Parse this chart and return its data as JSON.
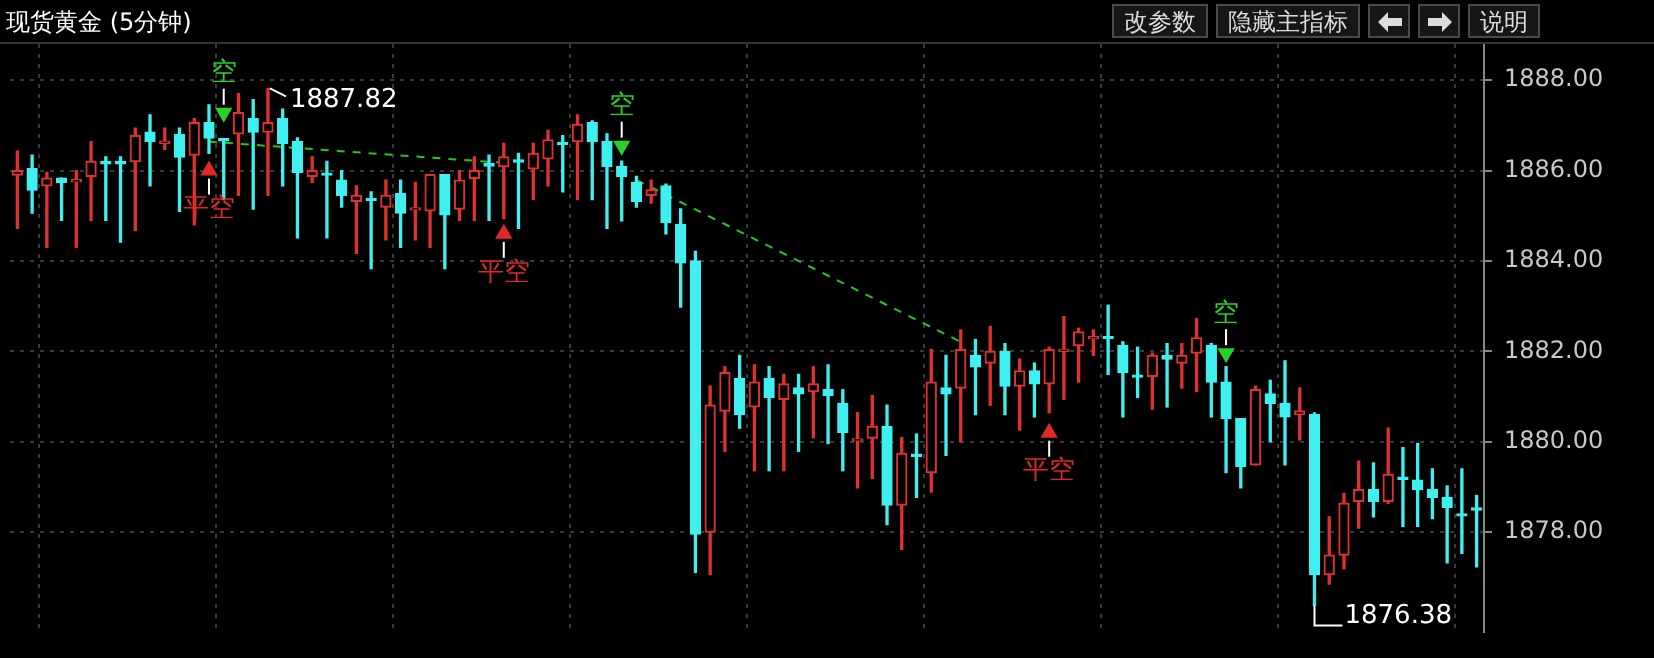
{
  "chart_data": {
    "type": "candlestick",
    "title": "现货黄金 (5分钟)",
    "annotations": [
      "改参数",
      "隐藏主指标",
      "说明",
      "1887.82",
      "1876.38"
    ],
    "categories": [
      null,
      null,
      null,
      null,
      null,
      null,
      null,
      null,
      null,
      null,
      null,
      null,
      null,
      null,
      null,
      null,
      null,
      null,
      null,
      null,
      null,
      null,
      null,
      null,
      null,
      null,
      null,
      null,
      null,
      null,
      null,
      null,
      null,
      null,
      null,
      null,
      null,
      null,
      null,
      null,
      null,
      null,
      null,
      null,
      null,
      null,
      null,
      null,
      null,
      null,
      null,
      null,
      null,
      null,
      null,
      null,
      null,
      null,
      null,
      null,
      null,
      null,
      null,
      null,
      null,
      null,
      null,
      null,
      null,
      null,
      null,
      null,
      null,
      null,
      null,
      null,
      null,
      null,
      null,
      null,
      null,
      null,
      null,
      null,
      null,
      null,
      null,
      null,
      null,
      null,
      null,
      null,
      null,
      null,
      null,
      null,
      null,
      null,
      null,
      null
    ],
    "ohlc": [
      [
        1885.9,
        1886.43,
        1884.72,
        1886.0
      ],
      [
        1886.04,
        1886.34,
        1885.06,
        1885.57
      ],
      [
        1885.66,
        1885.96,
        1884.3,
        1885.83
      ],
      [
        1885.83,
        1885.83,
        1884.9,
        1885.74
      ],
      [
        1885.75,
        1886.0,
        1884.3,
        1885.8
      ],
      [
        1885.87,
        1886.64,
        1884.9,
        1886.2
      ],
      [
        1886.2,
        1886.3,
        1884.9,
        1886.15
      ],
      [
        1886.2,
        1886.3,
        1884.42,
        1886.15
      ],
      [
        1886.2,
        1886.94,
        1884.68,
        1886.77
      ],
      [
        1886.85,
        1887.23,
        1885.66,
        1886.64
      ],
      [
        1886.6,
        1886.94,
        1886.47,
        1886.65
      ],
      [
        1886.8,
        1886.94,
        1885.1,
        1886.3
      ],
      [
        1886.34,
        1887.15,
        1884.8,
        1887.06
      ],
      [
        1887.06,
        1887.45,
        1886.38,
        1886.72
      ],
      [
        1886.7,
        1886.7,
        1885.36,
        1886.66
      ],
      [
        1886.81,
        1887.7,
        1885.45,
        1887.28
      ],
      [
        1887.15,
        1887.57,
        1885.15,
        1886.85
      ],
      [
        1886.85,
        1887.82,
        1885.45,
        1887.06
      ],
      [
        1887.15,
        1887.36,
        1885.66,
        1886.6
      ],
      [
        1886.64,
        1886.72,
        1884.51,
        1885.96
      ],
      [
        1885.87,
        1886.3,
        1885.74,
        1886.0
      ],
      [
        1885.94,
        1886.2,
        1884.51,
        1885.9
      ],
      [
        1885.79,
        1886.0,
        1885.19,
        1885.45
      ],
      [
        1885.32,
        1885.66,
        1884.17,
        1885.45
      ],
      [
        1885.38,
        1885.53,
        1883.83,
        1885.34
      ],
      [
        1885.19,
        1885.79,
        1884.47,
        1885.45
      ],
      [
        1885.49,
        1885.79,
        1884.3,
        1885.06
      ],
      [
        1885.13,
        1885.74,
        1884.47,
        1885.17
      ],
      [
        1885.11,
        1885.91,
        1884.3,
        1885.91
      ],
      [
        1885.91,
        1885.91,
        1883.83,
        1885.02
      ],
      [
        1885.15,
        1886.0,
        1884.9,
        1885.79
      ],
      [
        1885.83,
        1886.3,
        1884.9,
        1886.0
      ],
      [
        1886.15,
        1886.34,
        1884.9,
        1886.1
      ],
      [
        1886.09,
        1886.6,
        1884.94,
        1886.3
      ],
      [
        1886.23,
        1886.38,
        1884.72,
        1886.19
      ],
      [
        1886.04,
        1886.6,
        1885.36,
        1886.38
      ],
      [
        1886.26,
        1886.89,
        1885.66,
        1886.68
      ],
      [
        1886.62,
        1886.77,
        1885.53,
        1886.58
      ],
      [
        1886.64,
        1887.23,
        1885.36,
        1887.02
      ],
      [
        1887.06,
        1887.1,
        1885.36,
        1886.64
      ],
      [
        1886.64,
        1886.81,
        1884.72,
        1886.09
      ],
      [
        1886.09,
        1886.21,
        1884.89,
        1885.87
      ],
      [
        1885.74,
        1885.87,
        1885.19,
        1885.32
      ],
      [
        1885.45,
        1885.79,
        1885.28,
        1885.57
      ],
      [
        1885.66,
        1885.7,
        1884.6,
        1884.85
      ],
      [
        1884.81,
        1885.15,
        1882.98,
        1883.96
      ],
      [
        1884.0,
        1884.21,
        1877.11,
        1877.96
      ],
      [
        1878.0,
        1881.23,
        1877.06,
        1880.81
      ],
      [
        1880.68,
        1881.66,
        1879.79,
        1881.53
      ],
      [
        1881.4,
        1881.91,
        1880.3,
        1880.6
      ],
      [
        1880.77,
        1881.7,
        1879.36,
        1881.32
      ],
      [
        1881.4,
        1881.66,
        1879.36,
        1880.98
      ],
      [
        1880.94,
        1881.49,
        1879.36,
        1881.28
      ],
      [
        1881.19,
        1881.49,
        1879.79,
        1881.06
      ],
      [
        1881.11,
        1881.66,
        1880.09,
        1881.28
      ],
      [
        1881.15,
        1881.7,
        1879.96,
        1881.02
      ],
      [
        1880.85,
        1881.15,
        1879.36,
        1880.21
      ],
      [
        1880.02,
        1880.64,
        1878.98,
        1880.06
      ],
      [
        1880.08,
        1881.02,
        1879.19,
        1880.34
      ],
      [
        1880.34,
        1880.81,
        1878.17,
        1878.6
      ],
      [
        1878.6,
        1880.09,
        1877.62,
        1879.74
      ],
      [
        1879.72,
        1880.17,
        1878.77,
        1879.68
      ],
      [
        1879.32,
        1882.04,
        1878.89,
        1881.32
      ],
      [
        1881.19,
        1881.91,
        1879.7,
        1881.06
      ],
      [
        1881.19,
        1882.47,
        1880.0,
        1882.04
      ],
      [
        1881.91,
        1882.26,
        1880.6,
        1881.66
      ],
      [
        1881.74,
        1882.55,
        1880.81,
        1882.0
      ],
      [
        1882.0,
        1882.17,
        1880.6,
        1881.23
      ],
      [
        1881.23,
        1881.83,
        1880.26,
        1881.57
      ],
      [
        1881.57,
        1881.74,
        1880.55,
        1881.28
      ],
      [
        1881.28,
        1882.09,
        1880.64,
        1882.04
      ],
      [
        1882.0,
        1882.77,
        1880.94,
        1882.04
      ],
      [
        1882.13,
        1882.51,
        1881.32,
        1882.43
      ],
      [
        1882.28,
        1882.47,
        1881.91,
        1882.32
      ],
      [
        1882.32,
        1883.02,
        1881.49,
        1882.28
      ],
      [
        1882.13,
        1882.21,
        1880.55,
        1881.53
      ],
      [
        1881.47,
        1882.09,
        1880.98,
        1881.43
      ],
      [
        1881.45,
        1881.96,
        1880.72,
        1881.91
      ],
      [
        1881.91,
        1882.17,
        1880.77,
        1881.83
      ],
      [
        1881.74,
        1882.17,
        1881.19,
        1881.91
      ],
      [
        1881.96,
        1882.72,
        1881.11,
        1882.3
      ],
      [
        1882.13,
        1882.17,
        1880.55,
        1881.32
      ],
      [
        1881.32,
        1881.66,
        1879.32,
        1880.51
      ],
      [
        1880.51,
        1880.51,
        1878.98,
        1879.45
      ],
      [
        1879.49,
        1881.23,
        1879.49,
        1881.15
      ],
      [
        1881.06,
        1881.36,
        1880.0,
        1880.85
      ],
      [
        1880.85,
        1881.79,
        1879.49,
        1880.55
      ],
      [
        1880.6,
        1881.19,
        1880.04,
        1880.68
      ],
      [
        1880.6,
        1880.64,
        1876.38,
        1877.06
      ],
      [
        1877.06,
        1878.34,
        1876.85,
        1877.49
      ],
      [
        1877.49,
        1878.85,
        1877.19,
        1878.64
      ],
      [
        1878.68,
        1879.57,
        1878.09,
        1878.94
      ],
      [
        1878.94,
        1879.53,
        1878.34,
        1878.68
      ],
      [
        1878.68,
        1880.3,
        1878.64,
        1879.28
      ],
      [
        1879.21,
        1879.87,
        1878.13,
        1879.17
      ],
      [
        1879.15,
        1879.96,
        1878.13,
        1878.94
      ],
      [
        1878.94,
        1879.4,
        1878.3,
        1878.77
      ],
      [
        1878.77,
        1879.02,
        1877.32,
        1878.55
      ],
      [
        1878.4,
        1879.4,
        1877.53,
        1878.36
      ],
      [
        1878.53,
        1878.81,
        1877.23,
        1878.49
      ]
    ],
    "colors": [
      "#e03030",
      "#40f0f0",
      "#e03030",
      "#40f0f0",
      "#e03030",
      "#e03030",
      "#40f0f0",
      "#40f0f0",
      "#e03030",
      "#40f0f0",
      "#e03030",
      "#40f0f0",
      "#e03030",
      "#40f0f0",
      "#40f0f0",
      "#e03030",
      "#40f0f0",
      "#e03030",
      "#40f0f0",
      "#40f0f0",
      "#e03030",
      "#40f0f0",
      "#40f0f0",
      "#e03030",
      "#40f0f0",
      "#e03030",
      "#40f0f0",
      "#e03030",
      "#e03030",
      "#40f0f0",
      "#e03030",
      "#e03030",
      "#40f0f0",
      "#e03030",
      "#40f0f0",
      "#e03030",
      "#e03030",
      "#40f0f0",
      "#e03030",
      "#40f0f0",
      "#40f0f0",
      "#40f0f0",
      "#40f0f0",
      "#e03030",
      "#40f0f0",
      "#40f0f0",
      "#40f0f0",
      "#e03030",
      "#e03030",
      "#40f0f0",
      "#e03030",
      "#40f0f0",
      "#e03030",
      "#40f0f0",
      "#e03030",
      "#40f0f0",
      "#40f0f0",
      "#e03030",
      "#e03030",
      "#40f0f0",
      "#e03030",
      "#40f0f0",
      "#e03030",
      "#40f0f0",
      "#e03030",
      "#40f0f0",
      "#e03030",
      "#40f0f0",
      "#e03030",
      "#40f0f0",
      "#e03030",
      "#e03030",
      "#e03030",
      "#e03030",
      "#40f0f0",
      "#40f0f0",
      "#40f0f0",
      "#e03030",
      "#40f0f0",
      "#e03030",
      "#e03030",
      "#40f0f0",
      "#40f0f0",
      "#40f0f0",
      "#e03030",
      "#40f0f0",
      "#40f0f0",
      "#e03030",
      "#40f0f0",
      "#e03030",
      "#e03030",
      "#e03030",
      "#40f0f0",
      "#e03030",
      "#40f0f0",
      "#40f0f0",
      "#40f0f0",
      "#40f0f0",
      "#40f0f0",
      "#40f0f0"
    ],
    "series": [
      {
        "type": "scatter",
        "name": "空",
        "color": "#2ad02a",
        "values": [
          null,
          null,
          null,
          null,
          null,
          null,
          null,
          null,
          null,
          null,
          null,
          null,
          null,
          null,
          1887.28,
          null,
          null,
          null,
          null,
          null,
          null,
          null,
          null,
          null,
          null,
          null,
          null,
          null,
          null,
          null,
          null,
          null,
          null,
          null,
          null,
          null,
          null,
          null,
          null,
          null,
          null,
          1886.55,
          null,
          null,
          null,
          null,
          null,
          null,
          null,
          null,
          null,
          null,
          null,
          null,
          null,
          null,
          null,
          null,
          null,
          null,
          null,
          null,
          null,
          null,
          null,
          null,
          null,
          null,
          null,
          null,
          null,
          null,
          null,
          null,
          null,
          null,
          null,
          null,
          null,
          null,
          null,
          null,
          1881.96,
          null,
          null,
          null,
          null,
          null,
          null,
          null,
          null,
          null,
          null,
          null,
          null,
          null,
          null,
          null,
          null,
          null
        ]
      },
      {
        "type": "scatter",
        "name": "平空",
        "color": "#e02828",
        "values": [
          null,
          null,
          null,
          null,
          null,
          null,
          null,
          null,
          null,
          null,
          null,
          null,
          null,
          1886.0,
          null,
          null,
          null,
          null,
          null,
          null,
          null,
          null,
          null,
          null,
          null,
          null,
          null,
          null,
          null,
          null,
          null,
          null,
          null,
          1884.6,
          null,
          null,
          null,
          null,
          null,
          null,
          null,
          null,
          null,
          null,
          null,
          null,
          null,
          null,
          null,
          null,
          null,
          null,
          null,
          null,
          null,
          null,
          null,
          null,
          null,
          null,
          null,
          null,
          null,
          null,
          null,
          null,
          null,
          null,
          null,
          null,
          1880.2,
          null,
          null,
          null,
          null,
          null,
          null,
          null,
          null,
          null,
          null,
          null,
          null,
          null,
          null,
          null,
          null,
          null,
          null,
          null,
          null,
          null,
          null,
          null,
          null,
          null,
          null,
          null,
          null,
          null
        ]
      },
      {
        "type": "line",
        "color": "#22c822",
        "line_style": "dashed",
        "values": [
          null,
          null,
          null,
          null,
          null,
          null,
          null,
          null,
          null,
          null,
          null,
          null,
          null,
          1886.64,
          null,
          null,
          null,
          null,
          null,
          null,
          null,
          null,
          null,
          null,
          null,
          null,
          null,
          null,
          null,
          null,
          null,
          null,
          null,
          1886.17,
          null,
          null,
          null,
          null,
          null,
          null,
          null,
          null,
          null,
          null,
          null,
          null,
          null,
          null,
          null,
          null,
          null,
          null,
          null,
          null,
          null,
          null,
          null,
          null,
          null,
          null,
          null,
          null,
          null,
          null,
          null,
          null,
          null,
          null,
          null,
          null,
          null,
          null,
          null,
          null,
          null,
          null,
          null,
          null,
          null,
          null,
          null,
          null,
          null,
          null,
          null,
          null,
          null,
          null,
          null,
          null,
          null,
          null,
          null,
          null,
          null,
          null,
          null,
          null,
          null,
          null
        ]
      },
      {
        "type": "line",
        "color": "#22c822",
        "line_style": "dashed",
        "values": [
          null,
          null,
          null,
          null,
          null,
          null,
          null,
          null,
          null,
          null,
          null,
          null,
          null,
          null,
          null,
          null,
          null,
          null,
          null,
          null,
          null,
          null,
          null,
          null,
          null,
          null,
          null,
          null,
          null,
          null,
          null,
          null,
          null,
          null,
          null,
          null,
          null,
          null,
          null,
          null,
          null,
          null,
          1885.79,
          null,
          null,
          null,
          null,
          null,
          null,
          null,
          null,
          null,
          null,
          null,
          null,
          null,
          null,
          null,
          null,
          null,
          null,
          null,
          null,
          null,
          1882.21,
          null,
          null,
          null,
          null,
          null,
          null,
          null,
          null,
          null,
          null,
          null,
          null,
          null,
          null,
          null,
          null,
          null,
          null,
          null,
          null,
          null,
          null,
          null,
          null,
          null,
          null,
          null,
          null,
          null,
          null,
          null,
          null,
          null,
          null,
          null
        ]
      }
    ],
    "ylim": [
      1875.8,
      1888.8
    ],
    "yticks": [
      {
        "value": 1878,
        "label": "1878.00"
      },
      {
        "value": 1880,
        "label": "1880.00"
      },
      {
        "value": 1882,
        "label": "1882.00"
      },
      {
        "value": 1884,
        "label": "1884.00"
      },
      {
        "value": 1886,
        "label": "1886.00"
      },
      {
        "value": 1888,
        "label": "1888.00"
      }
    ],
    "grid": true,
    "tick_labels": "y",
    "legend": false
  }
}
